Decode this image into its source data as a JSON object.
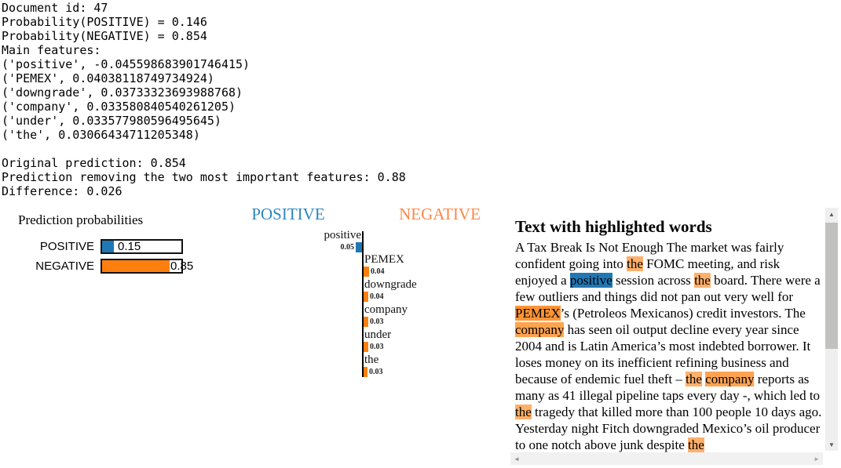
{
  "console": {
    "lines": [
      "Document id: 47",
      "Probability(POSITIVE) = 0.146",
      "Probability(NEGATIVE) = 0.854",
      "Main features:",
      "('positive', -0.045598683901746415)",
      "('PEMEX', 0.04038118749734924)",
      "('downgrade', 0.03733323693988768)",
      "('company', 0.033580840540261205)",
      "('under', 0.033577980596495645)",
      "('the', 0.03066434711205348)",
      "",
      "Original prediction: 0.854",
      "Prediction removing the two most important features: 0.88",
      "Difference: 0.026"
    ]
  },
  "prediction_probabilities": {
    "title": "Prediction probabilities",
    "rows": [
      {
        "label": "POSITIVE",
        "value": "0.15",
        "fraction": 0.15,
        "color": "#1f77b4"
      },
      {
        "label": "NEGATIVE",
        "value": "0.85",
        "fraction": 0.85,
        "color": "#ff7f0e"
      }
    ]
  },
  "feature_chart": {
    "positive_header": "POSITIVE",
    "negative_header": "NEGATIVE",
    "positive_header_color": "#2e86be",
    "negative_header_color": "#fd8747",
    "positive_bar_color": "#1f77b4",
    "negative_bar_color": "#ff7f0e",
    "features": [
      {
        "label": "positive",
        "value": "0.05",
        "weight": 0.0456,
        "side": "positive"
      },
      {
        "label": "PEMEX",
        "value": "0.04",
        "weight": 0.0404,
        "side": "negative"
      },
      {
        "label": "downgrade",
        "value": "0.04",
        "weight": 0.0373,
        "side": "negative"
      },
      {
        "label": "company",
        "value": "0.03",
        "weight": 0.0336,
        "side": "negative"
      },
      {
        "label": "under",
        "value": "0.03",
        "weight": 0.0336,
        "side": "negative"
      },
      {
        "label": "the",
        "value": "0.03",
        "weight": 0.0307,
        "side": "negative"
      }
    ]
  },
  "text_panel": {
    "title": "Text with highlighted words",
    "highlight_colors": {
      "pos": "#1f77b4",
      "neg_strong": "rgba(255,127,14,0.84)",
      "neg_mid": "rgba(255,127,14,0.72)",
      "neg_weak": "rgba(255,127,14,0.62)"
    },
    "segments": [
      {
        "t": "A Tax Break Is Not Enough The market was fairly confident going into "
      },
      {
        "t": "the",
        "h": "neg_weak"
      },
      {
        "t": " FOMC meeting, and risk enjoyed a "
      },
      {
        "t": "positive",
        "h": "pos"
      },
      {
        "t": " session across "
      },
      {
        "t": "the",
        "h": "neg_weak"
      },
      {
        "t": " board. There were a few outliers and things did not pan out very well for "
      },
      {
        "t": "PEMEX",
        "h": "neg_strong"
      },
      {
        "t": "’s (Petroleos Mexicanos) credit investors. The "
      },
      {
        "t": "company",
        "h": "neg_mid"
      },
      {
        "t": " has seen oil output decline every year since 2004 and is Latin America’s most indebted borrower. It loses money on its inefficient refining business and because of endemic fuel theft – "
      },
      {
        "t": "the",
        "h": "neg_weak"
      },
      {
        "t": " "
      },
      {
        "t": "company",
        "h": "neg_mid"
      },
      {
        "t": " reports as many as 41 illegal pipeline taps every day -, which led to "
      },
      {
        "t": "the",
        "h": "neg_weak"
      },
      {
        "t": " tragedy that killed more than 100 people 10 days ago. Yesterday night Fitch downgraded Mexico’s oil producer to one notch above junk despite "
      },
      {
        "t": "the",
        "h": "neg_weak"
      }
    ]
  },
  "icons": {
    "scroll_up": "▲",
    "scroll_down": "▼",
    "scroll_left": "◄",
    "scroll_right": "►"
  }
}
